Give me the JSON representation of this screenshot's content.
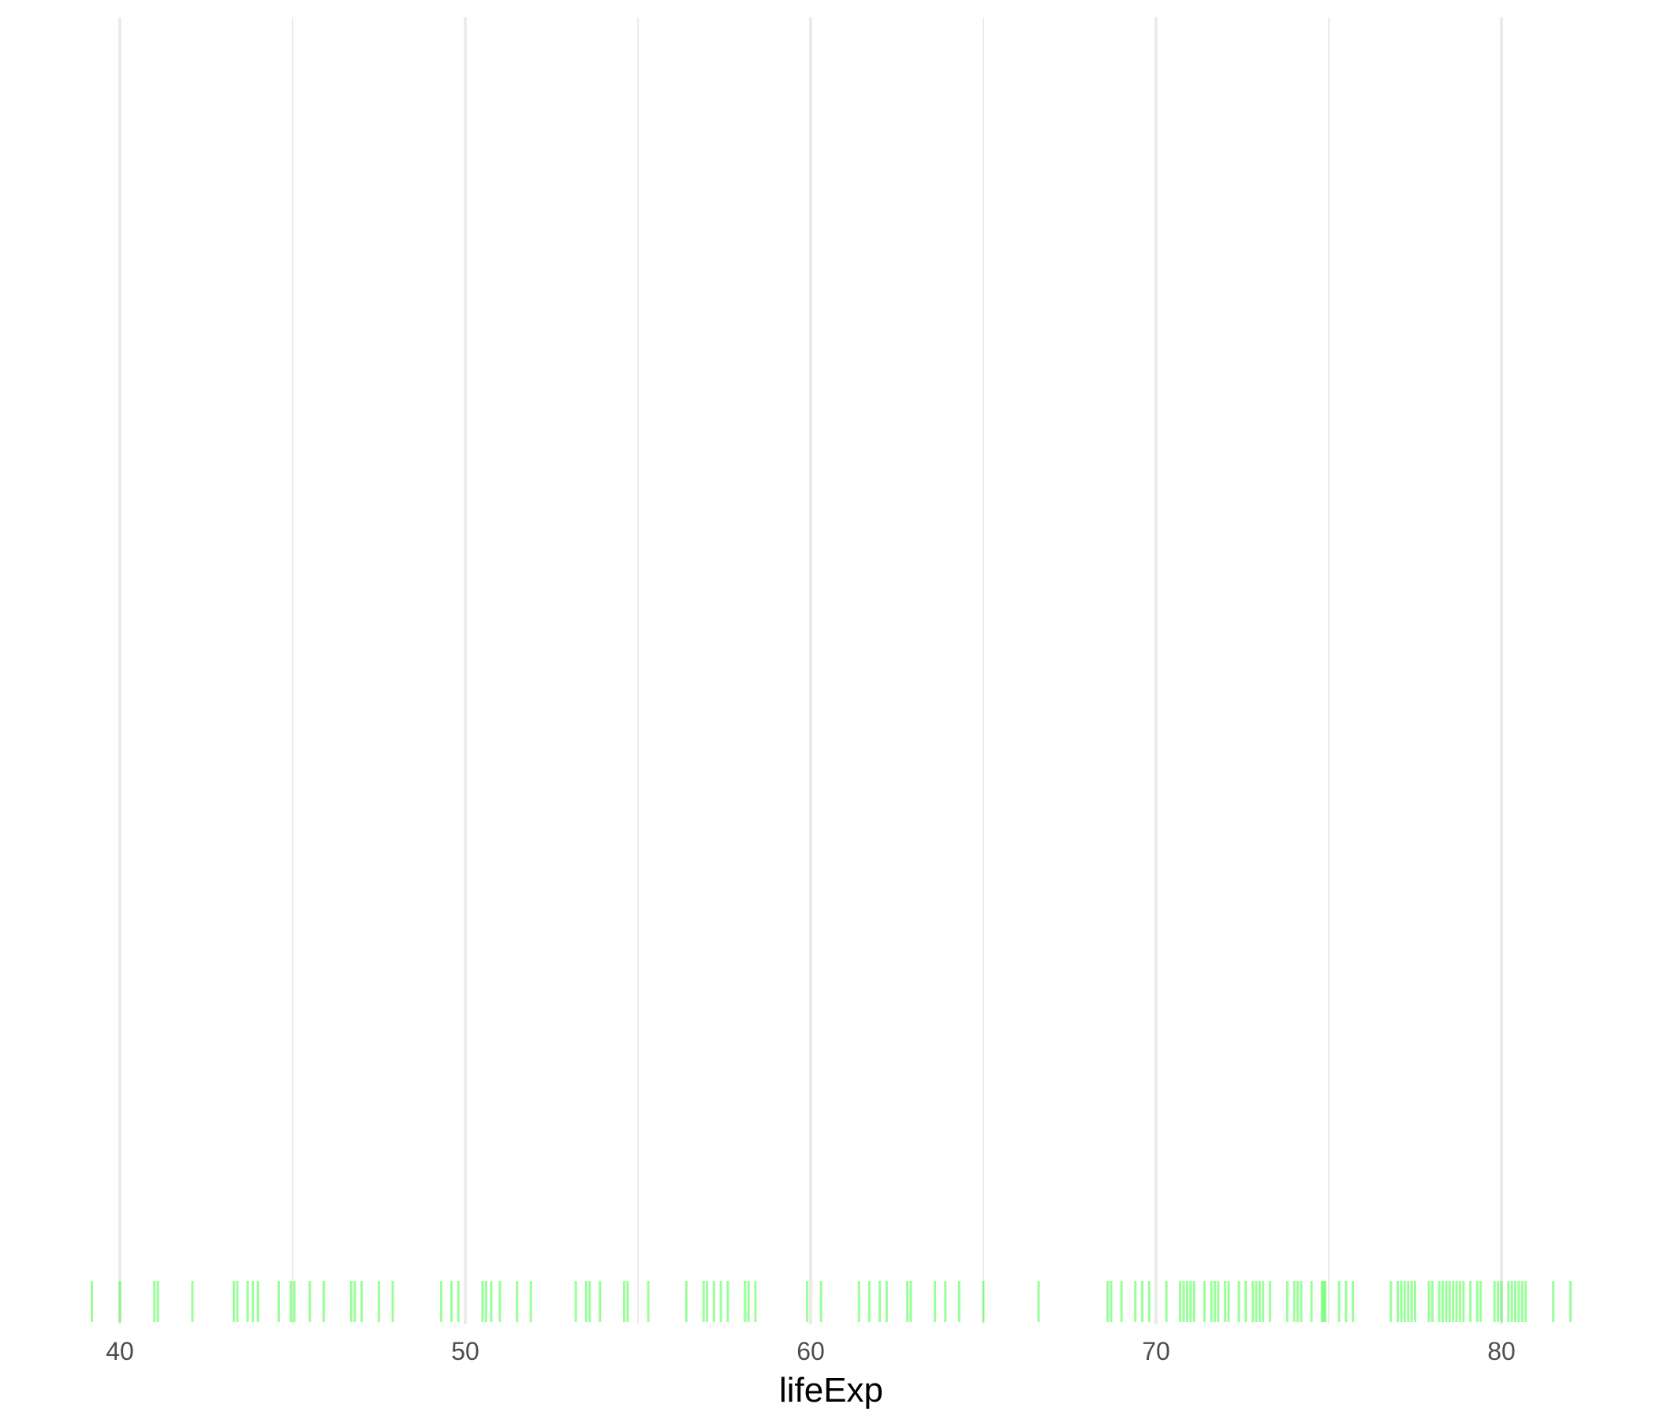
{
  "chart_data": {
    "type": "rug",
    "xlabel": "lifeExp",
    "xlim": [
      38.0,
      83.0
    ],
    "x_ticks": [
      40,
      50,
      60,
      70,
      80
    ],
    "x_tick_labels": [
      "40",
      "50",
      "60",
      "70",
      "80"
    ],
    "x_minor_ticks": [
      45,
      55,
      65,
      75
    ],
    "grid": true,
    "colors": {
      "rug": "#00ff00",
      "grid": "#ebebeb",
      "background": "#ffffff"
    },
    "values": [
      39.19,
      40.0,
      41.0,
      41.1,
      42.1,
      43.3,
      43.4,
      43.7,
      43.85,
      44.0,
      44.6,
      44.95,
      45.05,
      45.5,
      45.9,
      46.7,
      46.8,
      47.0,
      47.5,
      47.9,
      49.3,
      49.6,
      49.8,
      50.5,
      50.6,
      50.75,
      51.0,
      51.5,
      51.9,
      53.2,
      53.5,
      53.6,
      53.9,
      54.6,
      54.7,
      55.3,
      56.4,
      56.9,
      57.0,
      57.2,
      57.4,
      57.6,
      58.1,
      58.2,
      58.4,
      59.9,
      60.3,
      61.4,
      61.7,
      62.0,
      62.2,
      62.8,
      62.9,
      63.6,
      63.9,
      64.3,
      65.0,
      66.6,
      68.6,
      68.7,
      69.0,
      69.4,
      69.6,
      69.8,
      70.3,
      70.7,
      70.8,
      70.9,
      71.0,
      71.1,
      71.4,
      71.6,
      71.7,
      71.8,
      72.0,
      72.1,
      72.4,
      72.6,
      72.8,
      72.9,
      73.0,
      73.1,
      73.3,
      73.8,
      74.0,
      74.1,
      74.2,
      74.5,
      74.8,
      74.85,
      74.9,
      75.3,
      75.5,
      75.7,
      76.8,
      77.0,
      77.1,
      77.2,
      77.3,
      77.4,
      77.5,
      77.9,
      78.0,
      78.2,
      78.3,
      78.4,
      78.5,
      78.6,
      78.7,
      78.8,
      78.9,
      79.1,
      79.3,
      79.4,
      79.8,
      79.9,
      80.0,
      80.2,
      80.3,
      80.4,
      80.5,
      80.6,
      80.7,
      81.5,
      82.0
    ]
  }
}
